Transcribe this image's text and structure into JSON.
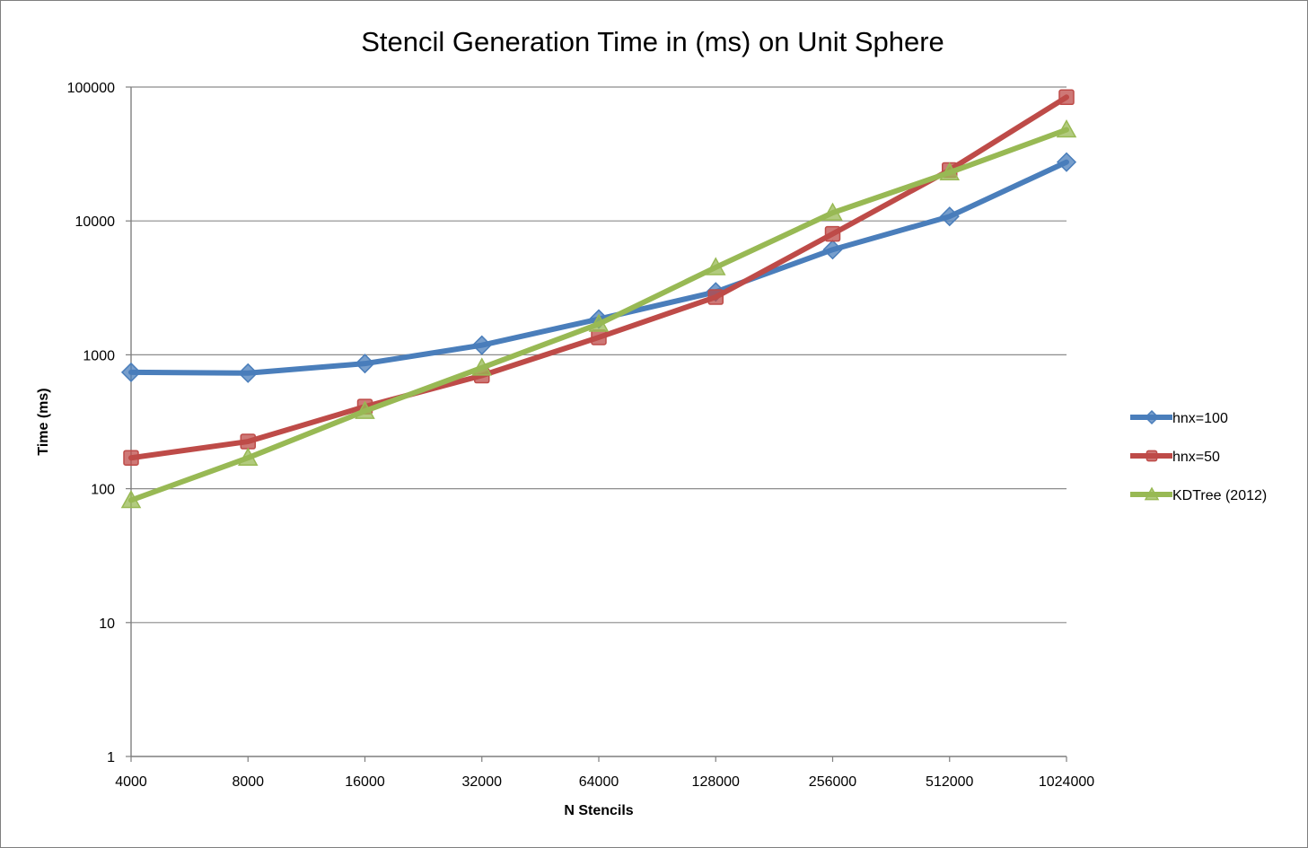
{
  "chart_data": {
    "type": "line",
    "title": "Stencil Generation Time in (ms) on Unit Sphere",
    "xlabel": "N Stencils",
    "ylabel": "Time (ms)",
    "y_scale": "log",
    "ylim": [
      1,
      100000
    ],
    "y_ticks": [
      "1",
      "10",
      "100",
      "1000",
      "10000",
      "100000"
    ],
    "grid": "horizontal major gridlines",
    "legend_position": "right",
    "categories": [
      "4000",
      "8000",
      "16000",
      "32000",
      "64000",
      "128000",
      "256000",
      "512000",
      "1024000"
    ],
    "series": [
      {
        "name": "hnx=100",
        "color": "#4a7ebb",
        "marker": "diamond",
        "values": [
          740,
          730,
          860,
          1180,
          1850,
          2950,
          6100,
          10800,
          27500
        ]
      },
      {
        "name": "hnx=50",
        "color": "#be4b48",
        "marker": "square",
        "values": [
          170,
          225,
          410,
          700,
          1350,
          2700,
          8000,
          24000,
          84000
        ]
      },
      {
        "name": "KDTree (2012)",
        "color": "#98b954",
        "marker": "triangle",
        "values": [
          82,
          170,
          380,
          800,
          1700,
          4500,
          11500,
          23000,
          48000
        ]
      }
    ]
  }
}
